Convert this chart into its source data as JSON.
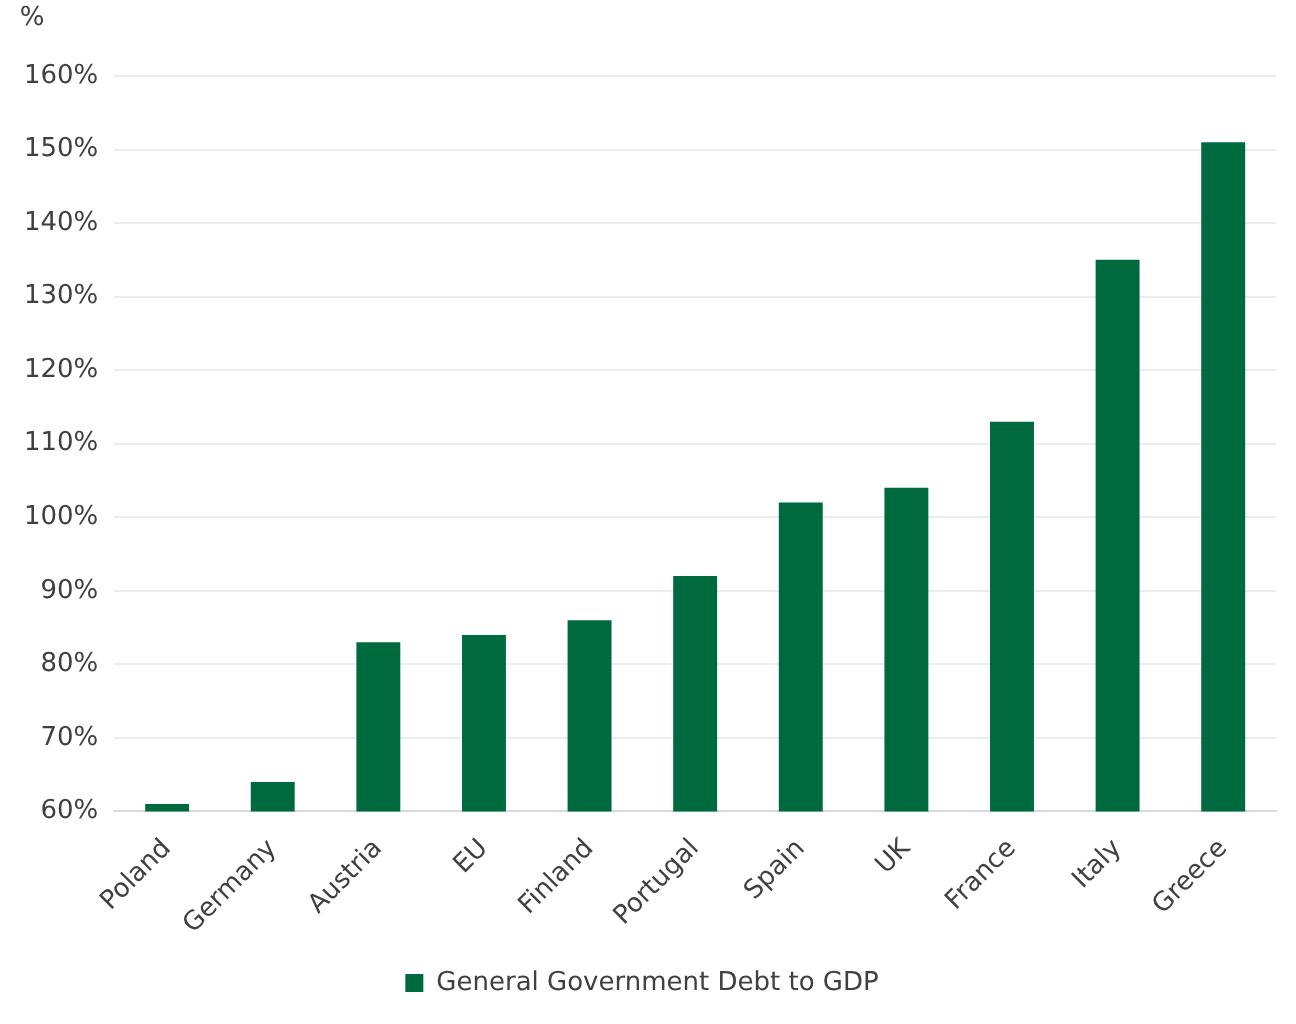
{
  "chart_data": {
    "type": "bar",
    "ylabel": "%",
    "categories": [
      "Poland",
      "Germany",
      "Austria",
      "EU",
      "Finland",
      "Portugal",
      "Spain",
      "UK",
      "France",
      "Italy",
      "Greece"
    ],
    "series": [
      {
        "name": "General Government Debt to GDP",
        "color": "#006a3f",
        "values": [
          61,
          64,
          83,
          84,
          86,
          92,
          102,
          104,
          113,
          135,
          151
        ]
      }
    ],
    "ylim": [
      60,
      160
    ],
    "yticks": [
      {
        "value": 60,
        "label": "60%"
      },
      {
        "value": 70,
        "label": "70%"
      },
      {
        "value": 80,
        "label": "80%"
      },
      {
        "value": 90,
        "label": "90%"
      },
      {
        "value": 100,
        "label": "100%"
      },
      {
        "value": 110,
        "label": "110%"
      },
      {
        "value": 120,
        "label": "120%"
      },
      {
        "value": 130,
        "label": "130%"
      },
      {
        "value": 140,
        "label": "140%"
      },
      {
        "value": 150,
        "label": "150%"
      },
      {
        "value": 160,
        "label": "160%"
      }
    ],
    "grid": "y",
    "legend": "bottom"
  }
}
